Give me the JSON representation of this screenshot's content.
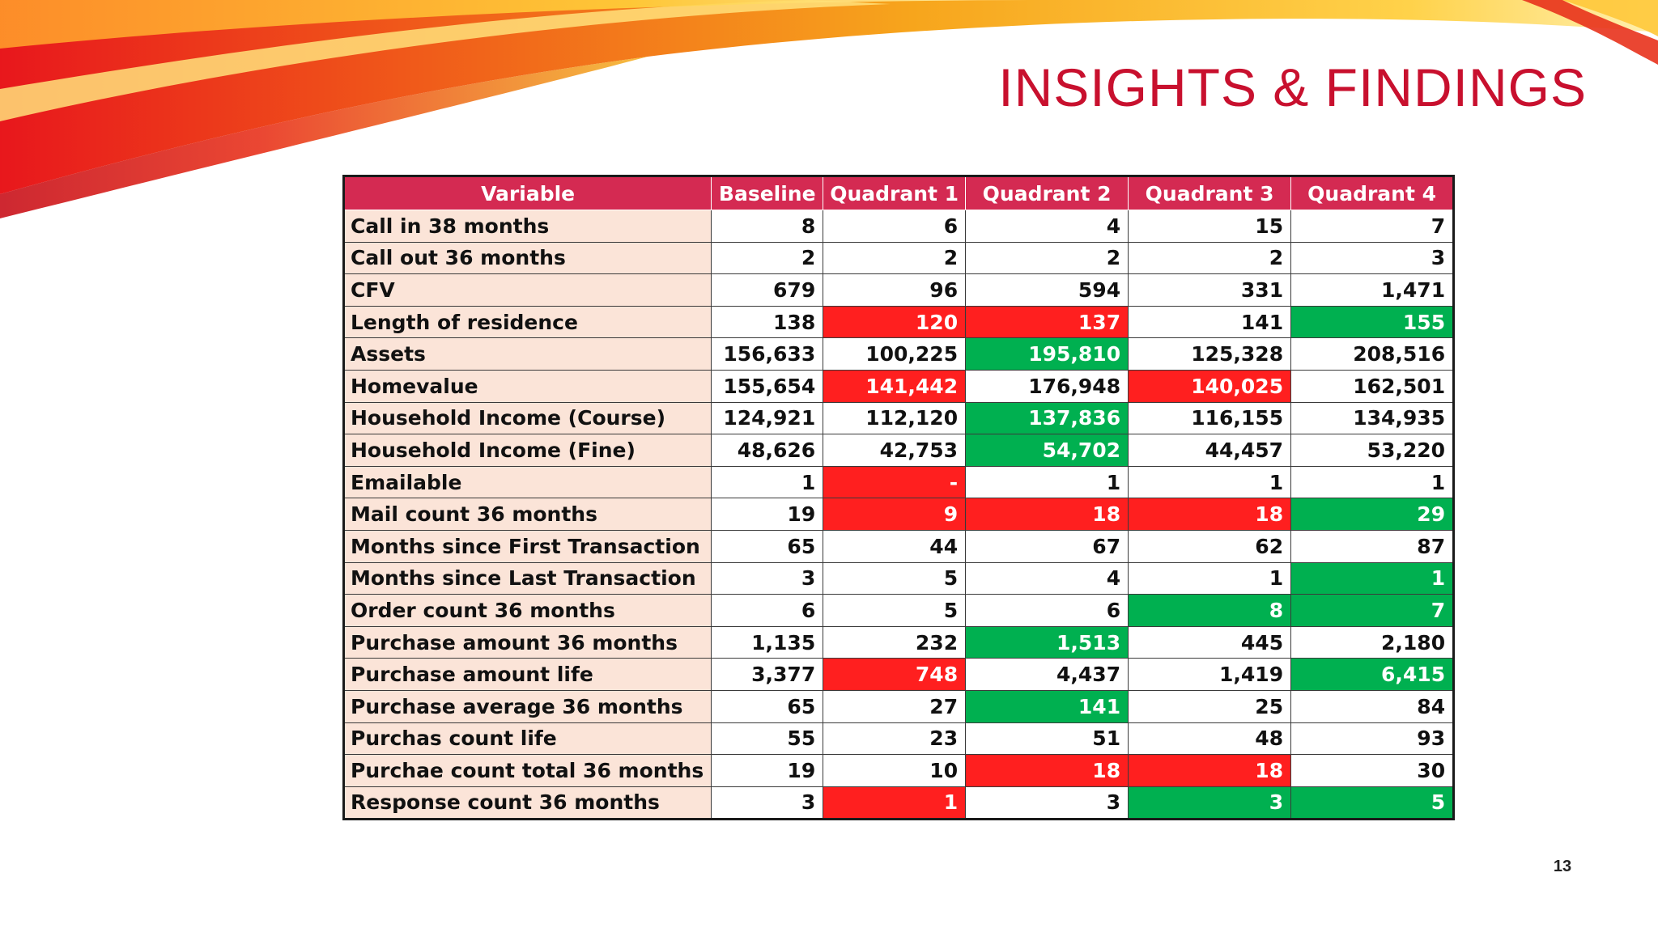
{
  "slide": {
    "title": "INSIGHTS & FINDINGS",
    "page_number": "13"
  },
  "colors": {
    "header": "#d42a52",
    "variable_cell": "#fbe4d8",
    "red": "#ff1f1f",
    "green": "#00b050",
    "title": "#c8102e"
  },
  "table": {
    "headers": [
      "Variable",
      "Baseline",
      "Quadrant 1",
      "Quadrant 2",
      "Quadrant 3",
      "Quadrant 4"
    ],
    "rows": [
      {
        "label": "Call in 38 months",
        "values": [
          "8",
          "6",
          "4",
          "15",
          "7"
        ],
        "highlight": [
          "",
          "",
          "",
          "",
          ""
        ]
      },
      {
        "label": "Call out 36 months",
        "values": [
          "2",
          "2",
          "2",
          "2",
          "3"
        ],
        "highlight": [
          "",
          "",
          "",
          "",
          ""
        ]
      },
      {
        "label": "CFV",
        "values": [
          "679",
          "96",
          "594",
          "331",
          "1,471"
        ],
        "highlight": [
          "",
          "",
          "",
          "",
          ""
        ]
      },
      {
        "label": "Length of residence",
        "values": [
          "138",
          "120",
          "137",
          "141",
          "155"
        ],
        "highlight": [
          "",
          "red",
          "red",
          "",
          "green"
        ]
      },
      {
        "label": "Assets",
        "values": [
          "156,633",
          "100,225",
          "195,810",
          "125,328",
          "208,516"
        ],
        "highlight": [
          "",
          "",
          "green",
          "",
          ""
        ]
      },
      {
        "label": "Homevalue",
        "values": [
          "155,654",
          "141,442",
          "176,948",
          "140,025",
          "162,501"
        ],
        "highlight": [
          "",
          "red",
          "",
          "red",
          ""
        ]
      },
      {
        "label": "Household Income (Course)",
        "values": [
          "124,921",
          "112,120",
          "137,836",
          "116,155",
          "134,935"
        ],
        "highlight": [
          "",
          "",
          "green",
          "",
          ""
        ]
      },
      {
        "label": "Household Income (Fine)",
        "values": [
          "48,626",
          "42,753",
          "54,702",
          "44,457",
          "53,220"
        ],
        "highlight": [
          "",
          "",
          "green",
          "",
          ""
        ]
      },
      {
        "label": "Emailable",
        "values": [
          "1",
          "-",
          "1",
          "1",
          "1"
        ],
        "highlight": [
          "",
          "red",
          "",
          "",
          ""
        ]
      },
      {
        "label": "Mail count 36 months",
        "values": [
          "19",
          "9",
          "18",
          "18",
          "29"
        ],
        "highlight": [
          "",
          "red",
          "red",
          "red",
          "green"
        ]
      },
      {
        "label": "Months since First Transaction",
        "values": [
          "65",
          "44",
          "67",
          "62",
          "87"
        ],
        "highlight": [
          "",
          "",
          "",
          "",
          ""
        ]
      },
      {
        "label": "Months since Last Transaction",
        "values": [
          "3",
          "5",
          "4",
          "1",
          "1"
        ],
        "highlight": [
          "",
          "",
          "",
          "",
          "green"
        ]
      },
      {
        "label": "Order count 36 months",
        "values": [
          "6",
          "5",
          "6",
          "8",
          "7"
        ],
        "highlight": [
          "",
          "",
          "",
          "green",
          "green"
        ]
      },
      {
        "label": "Purchase amount 36 months",
        "values": [
          "1,135",
          "232",
          "1,513",
          "445",
          "2,180"
        ],
        "highlight": [
          "",
          "",
          "green",
          "",
          ""
        ]
      },
      {
        "label": "Purchase amount life",
        "values": [
          "3,377",
          "748",
          "4,437",
          "1,419",
          "6,415"
        ],
        "highlight": [
          "",
          "red",
          "",
          "",
          "green"
        ]
      },
      {
        "label": "Purchase average 36 months",
        "values": [
          "65",
          "27",
          "141",
          "25",
          "84"
        ],
        "highlight": [
          "",
          "",
          "green",
          "",
          ""
        ]
      },
      {
        "label": "Purchas count life",
        "values": [
          "55",
          "23",
          "51",
          "48",
          "93"
        ],
        "highlight": [
          "",
          "",
          "",
          "",
          ""
        ]
      },
      {
        "label": "Purchae count total 36 months",
        "values": [
          "19",
          "10",
          "18",
          "18",
          "30"
        ],
        "highlight": [
          "",
          "",
          "red",
          "red",
          ""
        ]
      },
      {
        "label": "Response count 36 months",
        "values": [
          "3",
          "1",
          "3",
          "3",
          "5"
        ],
        "highlight": [
          "",
          "red",
          "",
          "green",
          "green"
        ]
      }
    ]
  }
}
